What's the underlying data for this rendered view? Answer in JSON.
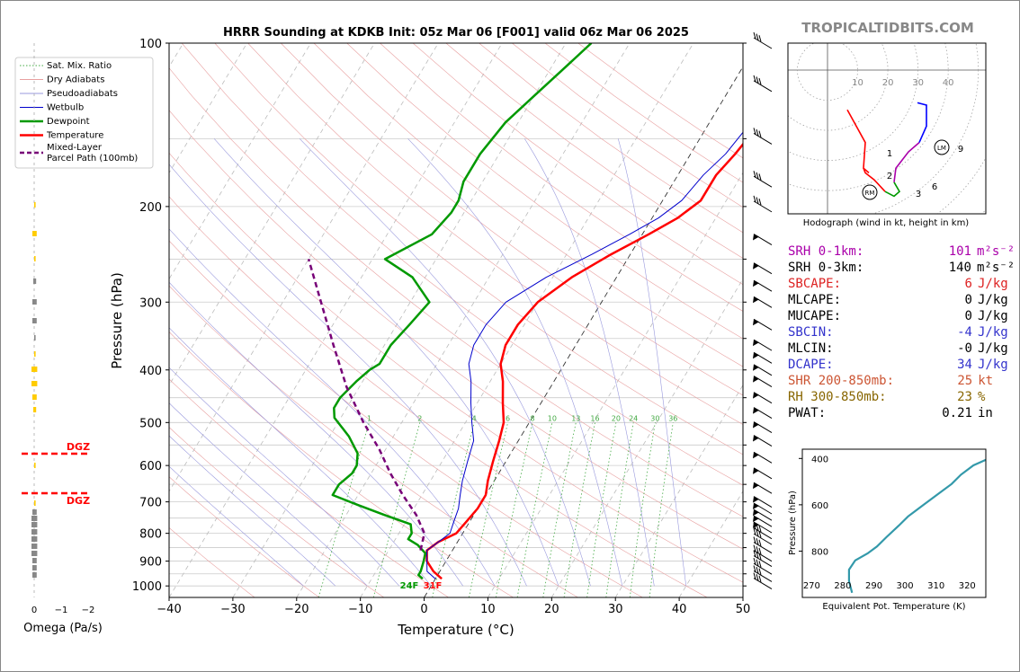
{
  "title": "HRRR Sounding at KDKB Init: 05z Mar 06 [F001] valid 06z Mar 06 2025",
  "brand": "TROPICALTIDBITS.COM",
  "chart_data": [
    {
      "type": "line",
      "name": "skewt",
      "xlabel": "Temperature (°C)",
      "ylabel": "Pressure (hPa)",
      "xlim": [
        -40,
        50
      ],
      "ylim": [
        1050,
        100
      ],
      "log_y": true,
      "x_ticks": [
        "−40",
        "−30",
        "−20",
        "−10",
        "0",
        "10",
        "20",
        "30",
        "40",
        "50"
      ],
      "y_ticks": [
        "100",
        "200",
        "300",
        "400",
        "500",
        "600",
        "700",
        "800",
        "900",
        "1000"
      ],
      "legend": {
        "placement": "left",
        "entries": [
          "Sat. Mix. Ratio",
          "Dry Adiabats",
          "Pseudoadiabats",
          "Wetbulb",
          "Dewpoint",
          "Temperature",
          "Mixed-Layer\nParcel Path (100mb)"
        ]
      },
      "mixing_ratio_labels": [
        "1",
        "2",
        "4",
        "6",
        "8",
        "10",
        "13",
        "16",
        "20",
        "24",
        "30",
        "36"
      ],
      "surface_labels": {
        "dewpoint": "24F",
        "temperature": "31F"
      },
      "series": [
        {
          "name": "Temperature",
          "color": "#ff0000",
          "points": [
            [
              1,
              970
            ],
            [
              -1,
              940
            ],
            [
              -3,
              900
            ],
            [
              -4,
              860
            ],
            [
              -3,
              830
            ],
            [
              -1,
              800
            ],
            [
              -0.5,
              760
            ],
            [
              0,
              720
            ],
            [
              0,
              680
            ],
            [
              -1,
              640
            ],
            [
              -2,
              590
            ],
            [
              -3,
              540
            ],
            [
              -4,
              500
            ],
            [
              -6,
              460
            ],
            [
              -8,
              420
            ],
            [
              -10,
              390
            ],
            [
              -11,
              360
            ],
            [
              -11,
              330
            ],
            [
              -10,
              300
            ],
            [
              -7,
              270
            ],
            [
              -3,
              245
            ],
            [
              1,
              225
            ],
            [
              4,
              210
            ],
            [
              6,
              195
            ],
            [
              6,
              175
            ],
            [
              7,
              160
            ],
            [
              8,
              140
            ],
            [
              9,
              120
            ],
            [
              10,
              108
            ],
            [
              11,
              100
            ]
          ]
        },
        {
          "name": "Dewpoint",
          "color": "#009900",
          "points": [
            [
              -2,
              970
            ],
            [
              -3,
              955
            ],
            [
              -3,
              940
            ],
            [
              -3.5,
              900
            ],
            [
              -4,
              870
            ],
            [
              -6,
              840
            ],
            [
              -8,
              820
            ],
            [
              -8,
              800
            ],
            [
              -9,
              770
            ],
            [
              -14,
              740
            ],
            [
              -19,
              710
            ],
            [
              -24,
              680
            ],
            [
              -24,
              650
            ],
            [
              -23,
              620
            ],
            [
              -23,
              600
            ],
            [
              -24,
              570
            ],
            [
              -27,
              530
            ],
            [
              -31,
              490
            ],
            [
              -32,
              470
            ],
            [
              -32,
              450
            ],
            [
              -31,
              420
            ],
            [
              -30,
              400
            ],
            [
              -29,
              390
            ],
            [
              -29,
              360
            ],
            [
              -28,
              330
            ],
            [
              -27,
              300
            ],
            [
              -32,
              270
            ],
            [
              -38,
              250
            ],
            [
              -33,
              225
            ],
            [
              -32,
              205
            ],
            [
              -32,
              195
            ],
            [
              -33,
              180
            ],
            [
              -33,
              160
            ],
            [
              -32,
              140
            ],
            [
              -30,
              125
            ],
            [
              -28,
              112
            ],
            [
              -26,
              100
            ]
          ]
        },
        {
          "name": "Wetbulb",
          "color": "#0000cc",
          "points": [
            [
              0,
              970
            ],
            [
              -2,
              940
            ],
            [
              -3,
              900
            ],
            [
              -4,
              860
            ],
            [
              -3,
              830
            ],
            [
              -2,
              800
            ],
            [
              -2.5,
              760
            ],
            [
              -3,
              720
            ],
            [
              -4,
              680
            ],
            [
              -5,
              640
            ],
            [
              -6,
              590
            ],
            [
              -7,
              540
            ],
            [
              -9,
              500
            ],
            [
              -11,
              460
            ],
            [
              -13,
              420
            ],
            [
              -15,
              390
            ],
            [
              -16,
              360
            ],
            [
              -16,
              330
            ],
            [
              -15,
              300
            ],
            [
              -11,
              270
            ],
            [
              -6,
              245
            ],
            [
              -2,
              225
            ],
            [
              1,
              210
            ],
            [
              3,
              195
            ],
            [
              4,
              175
            ],
            [
              5.5,
              160
            ],
            [
              6.5,
              140
            ],
            [
              8,
              120
            ],
            [
              9,
              108
            ],
            [
              10,
              100
            ]
          ]
        },
        {
          "name": "Mixed-Layer Parcel Path (100mb)",
          "color": "#770077",
          "points": [
            [
              -5,
              860
            ],
            [
              -6,
              800
            ],
            [
              -9,
              740
            ],
            [
              -13,
              680
            ],
            [
              -17,
              620
            ],
            [
              -21,
              560
            ],
            [
              -26,
              500
            ],
            [
              -32,
              430
            ],
            [
              -38,
              360
            ],
            [
              -44,
              300
            ],
            [
              -50,
              250
            ]
          ]
        }
      ]
    },
    {
      "type": "line",
      "name": "hodograph",
      "title": "Hodograph (wind in kt, height in km)",
      "ring_labels": [
        "10",
        "20",
        "30",
        "40"
      ],
      "height_labels": [
        "1",
        "2",
        "3",
        "6",
        "9"
      ],
      "markers": [
        "RM",
        "LM"
      ],
      "series": [
        {
          "color": "#ff0000",
          "points": [
            [
              11,
              -17
            ],
            [
              21,
              -31
            ],
            [
              20,
              -42
            ],
            [
              23,
              -44
            ]
          ]
        },
        {
          "color": "#ff0000",
          "points": [
            [
              20,
              -42
            ],
            [
              21,
              -44
            ],
            [
              26,
              -47
            ],
            [
              32,
              -52
            ]
          ]
        },
        {
          "color": "#009900",
          "points": [
            [
              32,
              -52
            ],
            [
              37,
              -54
            ],
            [
              40,
              -52
            ],
            [
              37,
              -48
            ]
          ]
        },
        {
          "color": "#aa00aa",
          "points": [
            [
              37,
              -48
            ],
            [
              38,
              -42
            ],
            [
              45,
              -35
            ],
            [
              51,
              -31
            ]
          ]
        },
        {
          "color": "#0000ff",
          "points": [
            [
              51,
              -31
            ],
            [
              55,
              -24
            ],
            [
              55,
              -15
            ],
            [
              50,
              -14
            ]
          ]
        }
      ]
    },
    {
      "type": "bar",
      "name": "omega",
      "xlabel": "Omega (Pa/s)",
      "x_ticks": [
        "0",
        "−1",
        "−2"
      ],
      "dgz_label": "DGZ"
    },
    {
      "type": "line",
      "name": "theta_e",
      "xlabel": "Equivalent Pot. Temperature (K)",
      "ylabel": "Pressure (hPa)",
      "xlim": [
        270,
        330
      ],
      "x_ticks": [
        "270",
        "280",
        "290",
        "300",
        "310",
        "320"
      ],
      "y_ticks": [
        "400",
        "600",
        "800"
      ],
      "series": [
        {
          "color": "#3399aa",
          "points": [
            [
              283,
              980
            ],
            [
              282,
              930
            ],
            [
              282,
              880
            ],
            [
              284,
              840
            ],
            [
              288,
              810
            ],
            [
              291,
              780
            ],
            [
              294,
              740
            ],
            [
              298,
              690
            ],
            [
              301,
              650
            ],
            [
              306,
              600
            ],
            [
              311,
              550
            ],
            [
              315,
              510
            ],
            [
              318,
              470
            ],
            [
              322,
              430
            ],
            [
              327,
              400
            ],
            [
              335,
              380
            ]
          ]
        }
      ]
    }
  ],
  "stats": [
    {
      "label": "SRH 0-1km:",
      "value": "101",
      "unit": "m²s⁻²",
      "color": "#aa00aa"
    },
    {
      "label": "SRH 0-3km:",
      "value": "140",
      "unit": "m²s⁻²",
      "color": "#000000"
    },
    {
      "label": "SBCAPE:",
      "value": "6",
      "unit": "J/kg",
      "color": "#dd2222"
    },
    {
      "label": "MLCAPE:",
      "value": "0",
      "unit": "J/kg",
      "color": "#000000"
    },
    {
      "label": "MUCAPE:",
      "value": "0",
      "unit": "J/kg",
      "color": "#000000"
    },
    {
      "label": "SBCIN:",
      "value": "-4",
      "unit": "J/kg",
      "color": "#3333cc"
    },
    {
      "label": "MLCIN:",
      "value": "-0",
      "unit": "J/kg",
      "color": "#000000"
    },
    {
      "label": "DCAPE:",
      "value": "34",
      "unit": "J/kg",
      "color": "#3333cc"
    },
    {
      "label": "SHR 200-850mb:",
      "value": "25",
      "unit": "kt",
      "color": "#cc5533"
    },
    {
      "label": "RH 300-850mb:",
      "value": "23",
      "unit": "%",
      "color": "#886600"
    },
    {
      "label": "PWAT:",
      "value": "0.21",
      "unit": "in",
      "color": "#000000"
    }
  ]
}
